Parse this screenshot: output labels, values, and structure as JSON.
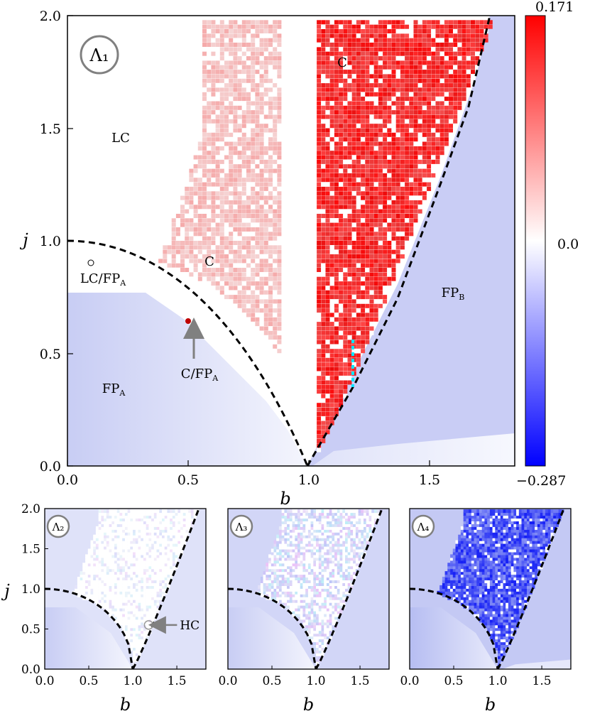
{
  "colors": {
    "positive_max": "#ff0000",
    "zero": "#ffffff",
    "negative_max": "#0000ff",
    "boundary": "#000000",
    "marker_cyan": "#00e5ff",
    "marker_red": "#c00000",
    "arrow": "#808080"
  },
  "colorbar": {
    "max_label": "0.171",
    "mid_label": "0.0",
    "min_label": "−0.287"
  },
  "chart_data": [
    {
      "type": "heatmap",
      "panel_label": "Λ₁",
      "xlabel": "b",
      "ylabel": "j",
      "xlim": [
        0,
        1.83
      ],
      "ylim": [
        0,
        2.0
      ],
      "xticks": [
        "0.0",
        "0.5",
        "1.0",
        "1.5"
      ],
      "yticks": [
        "0.0",
        "0.5",
        "1.0",
        "1.5",
        "2.0"
      ],
      "value_range": [
        -0.287,
        0.171
      ],
      "boundaries": [
        {
          "kind": "arc",
          "equation": "j = sqrt(1 - b^2)",
          "b_range": [
            0,
            1
          ],
          "style": "dashed"
        },
        {
          "kind": "curve",
          "from": [
            1.0,
            0.0
          ],
          "to": [
            1.75,
            2.0
          ],
          "style": "dashed"
        }
      ],
      "annotations": [
        {
          "text": "LC",
          "b": 0.25,
          "j": 1.45
        },
        {
          "text": "C",
          "b": 0.6,
          "j": 0.88
        },
        {
          "text": "C",
          "b": 1.14,
          "j": 1.8
        },
        {
          "text": "LC/FP",
          "sub": "A",
          "b": 0.14,
          "j": 0.8
        },
        {
          "text": "C/FP",
          "sub": "A",
          "b": 0.52,
          "j": 0.38
        },
        {
          "text": "FP",
          "sub": "A",
          "b": 0.21,
          "j": 0.33
        },
        {
          "text": "FP",
          "sub": "B",
          "b": 1.55,
          "j": 0.75
        }
      ],
      "markers": [
        {
          "kind": "open-circle",
          "b": 0.1,
          "j": 0.9
        },
        {
          "kind": "red-dot",
          "b": 0.5,
          "j": 0.64
        },
        {
          "kind": "cyan-dotted-segment",
          "b": 1.18,
          "j": [
            0.36,
            0.57
          ]
        }
      ]
    },
    {
      "type": "heatmap",
      "panel_label": "Λ₂",
      "xlabel": "b",
      "ylabel": "j",
      "xlim": [
        0,
        1.83
      ],
      "ylim": [
        0,
        2.0
      ],
      "xticks": [
        "0.0",
        "0.5",
        "1.0",
        "1.5"
      ],
      "yticks": [
        "0.0",
        "0.5",
        "1.0",
        "1.5",
        "2.0"
      ],
      "annotations": [
        {
          "text": "HC",
          "b": 1.45,
          "j": 0.55
        }
      ],
      "markers": [
        {
          "kind": "open-circle",
          "b": 1.18,
          "j": 0.55
        }
      ]
    },
    {
      "type": "heatmap",
      "panel_label": "Λ₃",
      "xlabel": "b",
      "xlim": [
        0,
        1.83
      ],
      "ylim": [
        0,
        2.0
      ],
      "xticks": [
        "0.0",
        "0.5",
        "1.0",
        "1.5"
      ],
      "yticks": []
    },
    {
      "type": "heatmap",
      "panel_label": "Λ₄",
      "xlabel": "b",
      "xlim": [
        0,
        1.83
      ],
      "ylim": [
        0,
        2.0
      ],
      "xticks": [
        "0.0",
        "0.5",
        "1.0",
        "1.5"
      ],
      "yticks": []
    }
  ]
}
